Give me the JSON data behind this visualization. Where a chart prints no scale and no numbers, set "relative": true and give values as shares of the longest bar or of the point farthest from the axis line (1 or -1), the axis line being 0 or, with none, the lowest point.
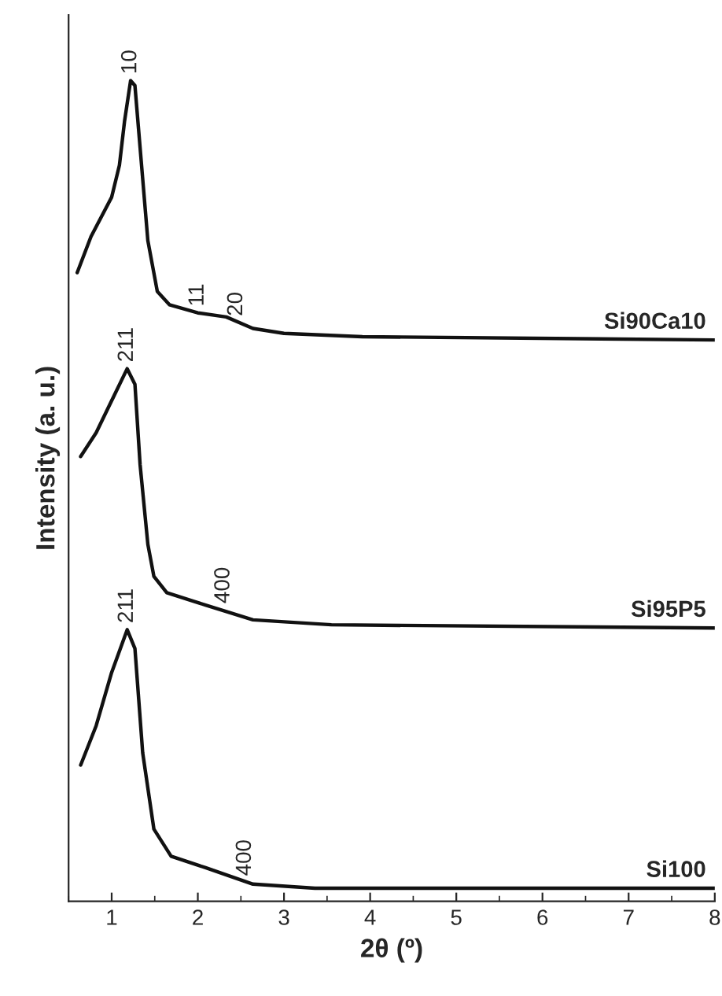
{
  "chart_data": {
    "type": "line",
    "relative": true,
    "xlabel": "2θ (º)",
    "ylabel": "Intensity (a. u.)",
    "xlim": [
      0.5,
      8
    ],
    "xticks": [
      1,
      2,
      3,
      4,
      5,
      6,
      7,
      8
    ],
    "series": [
      {
        "name": "Si90Ca10",
        "color": "#111111",
        "x": [
          0.6,
          0.76,
          1.0,
          1.09,
          1.15,
          1.22,
          1.27,
          1.35,
          1.42,
          1.53,
          1.67,
          2.0,
          2.33,
          2.64,
          3.0,
          3.91,
          8
        ],
        "values": [
          0.766,
          0.81,
          0.858,
          0.897,
          0.951,
          1.0,
          0.994,
          0.893,
          0.805,
          0.743,
          0.727,
          0.717,
          0.712,
          0.698,
          0.692,
          0.688,
          0.684
        ]
      },
      {
        "name": "Si95P5",
        "color": "#111111",
        "x": [
          0.64,
          0.82,
          1.0,
          1.18,
          1.27,
          1.33,
          1.42,
          1.49,
          1.64,
          2.09,
          2.64,
          3.55,
          8
        ],
        "values": [
          0.542,
          0.571,
          0.61,
          0.649,
          0.63,
          0.532,
          0.435,
          0.396,
          0.376,
          0.361,
          0.343,
          0.337,
          0.333
        ]
      },
      {
        "name": "Si100",
        "color": "#111111",
        "x": [
          0.64,
          0.82,
          1.0,
          1.18,
          1.27,
          1.36,
          1.49,
          1.69,
          2.09,
          2.64,
          3.36,
          8
        ],
        "values": [
          0.166,
          0.214,
          0.279,
          0.331,
          0.308,
          0.181,
          0.088,
          0.055,
          0.041,
          0.021,
          0.016,
          0.016
        ]
      }
    ],
    "annotations": [
      {
        "text": "10",
        "x": 1.22,
        "y": 1.0
      },
      {
        "text": "11",
        "x": 2.0,
        "y": 0.717
      },
      {
        "text": "20",
        "x": 2.45,
        "y": 0.705
      },
      {
        "text": "211",
        "x": 1.18,
        "y": 0.649
      },
      {
        "text": "400",
        "x": 2.3,
        "y": 0.355
      },
      {
        "text": "211",
        "x": 1.18,
        "y": 0.331
      },
      {
        "text": "400",
        "x": 2.55,
        "y": 0.023
      }
    ]
  }
}
